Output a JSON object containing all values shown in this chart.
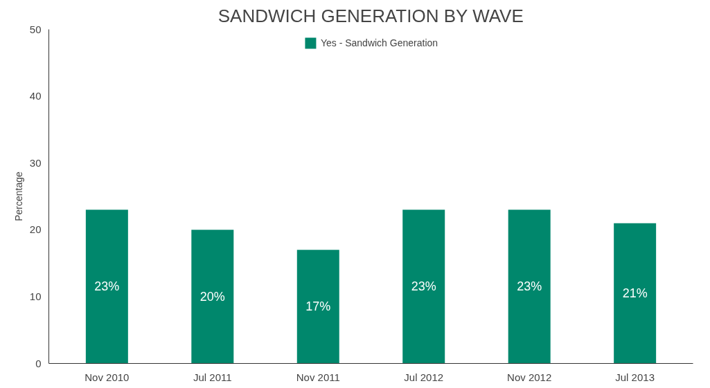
{
  "chart_data": {
    "type": "bar",
    "title": "SANDWICH GENERATION BY WAVE",
    "ylabel": "Percentage",
    "categories": [
      "Nov 2010",
      "Jul 2011",
      "Nov 2011",
      "Jul 2012",
      "Nov 2012",
      "Jul 2013"
    ],
    "series": [
      {
        "name": "Yes - Sandwich Generation",
        "color": "#00876c",
        "values": [
          23,
          20,
          17,
          23,
          23,
          21
        ],
        "value_labels": [
          "23%",
          "20%",
          "17%",
          "23%",
          "23%",
          "21%"
        ]
      }
    ],
    "ylim": [
      0,
      50
    ],
    "yticks": [
      0,
      10,
      20,
      30,
      40,
      50
    ],
    "grid": false,
    "legend": "top"
  }
}
